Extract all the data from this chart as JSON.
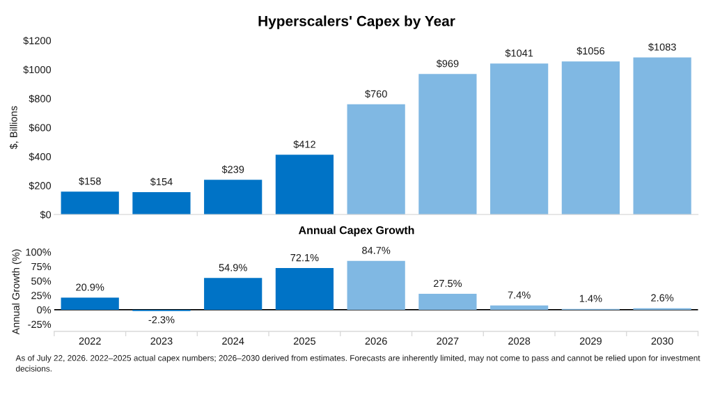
{
  "chart_data": [
    {
      "type": "bar",
      "title": "Hyperscalers' Capex by Year",
      "ylabel": "$, Billions",
      "categories": [
        "2022",
        "2023",
        "2024",
        "2025",
        "2026",
        "2027",
        "2028",
        "2029",
        "2030"
      ],
      "values": [
        158,
        154,
        239,
        412,
        760,
        969,
        1041,
        1056,
        1083
      ],
      "colors": [
        "#0073c6",
        "#0073c6",
        "#0073c6",
        "#0073c6",
        "#80b8e3",
        "#80b8e3",
        "#80b8e3",
        "#80b8e3",
        "#80b8e3"
      ],
      "value_labels": [
        "$158",
        "$154",
        "$239",
        "$412",
        "$760",
        "$969",
        "$1041",
        "$1056",
        "$1083"
      ],
      "ylim": [
        0,
        1200
      ],
      "yticks": [
        {
          "value": 0,
          "label": "$0"
        },
        {
          "value": 200,
          "label": "$200"
        },
        {
          "value": 400,
          "label": "$400"
        },
        {
          "value": 600,
          "label": "$600"
        },
        {
          "value": 800,
          "label": "$800"
        },
        {
          "value": 1000,
          "label": "$1000"
        },
        {
          "value": 1200,
          "label": "$1200"
        }
      ],
      "tick_labels": "y"
    },
    {
      "type": "bar",
      "title": "Annual Capex Growth",
      "ylabel": "Annual Growth (%)",
      "categories": [
        "2022",
        "2023",
        "2024",
        "2025",
        "2026",
        "2027",
        "2028",
        "2029",
        "2030"
      ],
      "values": [
        20.9,
        -2.3,
        54.9,
        72.1,
        84.7,
        27.5,
        7.4,
        1.4,
        2.6
      ],
      "colors": [
        "#0073c6",
        "#0073c6",
        "#0073c6",
        "#0073c6",
        "#80b8e3",
        "#80b8e3",
        "#80b8e3",
        "#80b8e3",
        "#80b8e3"
      ],
      "value_labels": [
        "20.9%",
        "-2.3%",
        "54.9%",
        "72.1%",
        "84.7%",
        "27.5%",
        "7.4%",
        "1.4%",
        "2.6%"
      ],
      "ylim": [
        -37.5,
        100
      ],
      "yticks": [
        {
          "value": -25,
          "label": "-25%"
        },
        {
          "value": 0,
          "label": "0%"
        },
        {
          "value": 25,
          "label": "25%"
        },
        {
          "value": 50,
          "label": "50%"
        },
        {
          "value": 75,
          "label": "75%"
        },
        {
          "value": 100,
          "label": "100%"
        }
      ],
      "ref_lines": [
        {
          "axis": "y",
          "value": 0,
          "color": "#000000"
        }
      ],
      "annotations": [
        "As of July 22, 2026. 2022–2025 actual capex numbers; 2026–2030 derived from estimates. Forecasts are inherently limited, may not come to pass and cannot be relied upon for investment decisions."
      ]
    }
  ]
}
